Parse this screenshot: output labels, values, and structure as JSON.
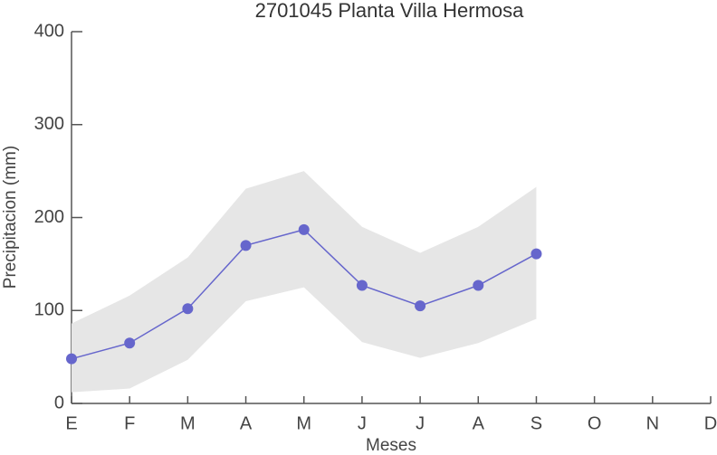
{
  "chart_data": {
    "type": "line",
    "title": "2701045 Planta Villa Hermosa",
    "x_label": "Meses",
    "y_label": "Precipitacion (mm)",
    "categories": [
      "E",
      "F",
      "M",
      "A",
      "M",
      "J",
      "J",
      "A",
      "S",
      "O",
      "N",
      "D"
    ],
    "values": [
      48,
      65,
      102,
      170,
      187,
      127,
      105,
      127,
      161,
      null,
      null,
      null
    ],
    "band_lower": [
      12,
      16,
      47,
      110,
      125,
      66,
      49,
      65,
      91,
      null,
      null,
      null
    ],
    "band_upper": [
      86,
      116,
      157,
      231,
      250,
      190,
      162,
      190,
      233,
      null,
      null,
      null
    ],
    "color": "#6666cc",
    "band_color": "#e6e6e6",
    "ylim": [
      0,
      400
    ],
    "yticks": [
      0,
      100,
      200,
      300,
      400
    ]
  }
}
